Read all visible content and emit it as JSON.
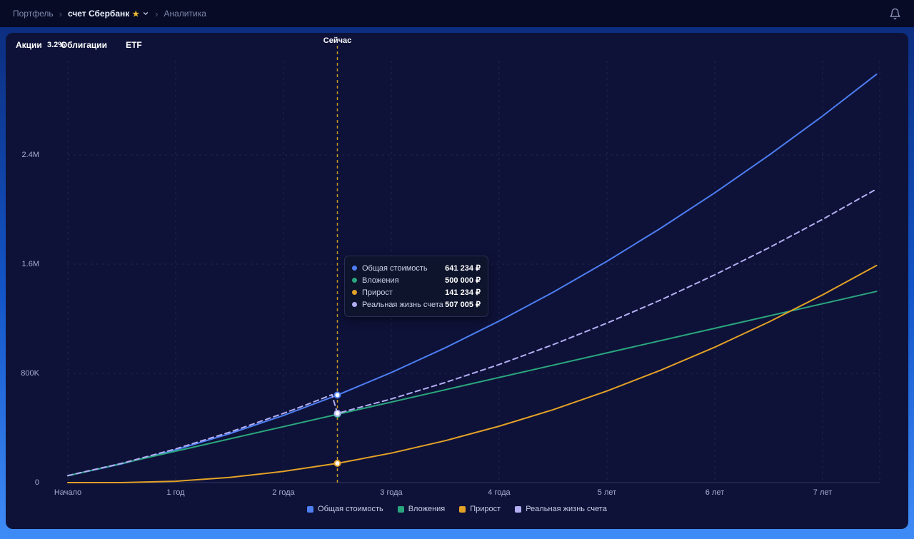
{
  "header": {
    "breadcrumb": {
      "portfolio": "Портфель",
      "account": "счет Сбербанк",
      "analytics": "Аналитика"
    }
  },
  "tabs": [
    {
      "key": "stocks",
      "label": "Акции"
    },
    {
      "key": "bonds",
      "label": "Облигации"
    },
    {
      "key": "etf",
      "label": "ETF"
    }
  ],
  "overlay_badge": "3.2%",
  "chart_data": {
    "type": "line",
    "title": "",
    "xlabel": "",
    "ylabel": "",
    "grid": true,
    "legend_position": "bottom",
    "now_label": "Сейчас",
    "now_x": 2.5,
    "xlim": [
      0,
      7.53
    ],
    "ylim": [
      0,
      3090000
    ],
    "xticks": [
      {
        "v": 0,
        "label": "Начало"
      },
      {
        "v": 1,
        "label": "1 год"
      },
      {
        "v": 2,
        "label": "2 года"
      },
      {
        "v": 3,
        "label": "3 года"
      },
      {
        "v": 4,
        "label": "4 года"
      },
      {
        "v": 5,
        "label": "5 лет"
      },
      {
        "v": 6,
        "label": "6 лет"
      },
      {
        "v": 7,
        "label": "7 лет"
      }
    ],
    "yticks": [
      {
        "v": 0,
        "label": "0"
      },
      {
        "v": 800000,
        "label": "800K"
      },
      {
        "v": 1600000,
        "label": "1.6M"
      },
      {
        "v": 2400000,
        "label": "2.4M"
      }
    ],
    "series": [
      {
        "key": "total",
        "name": "Общая стоимость",
        "color": "#4d7ef2",
        "dash": null,
        "x": [
          0,
          0.5,
          1,
          1.5,
          2,
          2.5,
          3,
          3.5,
          4,
          4.5,
          5,
          5.5,
          6,
          6.5,
          7,
          7.5
        ],
        "y": [
          50000,
          137000,
          240000,
          358000,
          492000,
          641234,
          806000,
          987000,
          1183000,
          1394000,
          1621000,
          1864000,
          2122000,
          2396000,
          2685000,
          2990000
        ]
      },
      {
        "key": "invested",
        "name": "Вложения",
        "color": "#2aa67e",
        "dash": null,
        "x": [
          0,
          2.5,
          7.5
        ],
        "y": [
          50000,
          500000,
          1400000
        ]
      },
      {
        "key": "growth",
        "name": "Прирост",
        "color": "#e3a127",
        "dash": null,
        "x": [
          0,
          0.5,
          1,
          1.5,
          2,
          2.5,
          3,
          3.5,
          4,
          4.5,
          5,
          5.5,
          6,
          6.5,
          7,
          7.5
        ],
        "y": [
          0,
          0,
          10000,
          38000,
          82000,
          141234,
          216000,
          307000,
          413000,
          534000,
          671000,
          824000,
          992000,
          1176000,
          1375000,
          1590000
        ]
      },
      {
        "key": "real",
        "name": "Реальная жизнь счета",
        "color": "#b3aef2",
        "dash": "7 5",
        "x": [
          0,
          0.5,
          1,
          1.5,
          2,
          2.2,
          2.35,
          2.45,
          2.5,
          3,
          3.5,
          4,
          4.5,
          5,
          5.5,
          6,
          6.5,
          7,
          7.5
        ],
        "y": [
          52000,
          141000,
          247000,
          369000,
          507000,
          566000,
          613000,
          644000,
          507005,
          613000,
          733000,
          865000,
          1010000,
          1168000,
          1338000,
          1522000,
          1719000,
          1928000,
          2150000
        ]
      }
    ],
    "markers": [
      {
        "key": "invested",
        "value": 500000,
        "color": "#2aa67e"
      },
      {
        "key": "total",
        "value": 641234,
        "color": "#4d7ef2"
      },
      {
        "key": "real",
        "value": 507005,
        "color": "#b3aef2"
      },
      {
        "key": "growth",
        "value": 141234,
        "color": "#e3a127"
      }
    ]
  },
  "tooltip": {
    "rows": [
      {
        "key": "total",
        "label": "Общая стоимость",
        "value": "641 234 ₽",
        "color": "#4d7ef2"
      },
      {
        "key": "invested",
        "label": "Вложения",
        "value": "500 000 ₽",
        "color": "#2aa67e"
      },
      {
        "key": "growth",
        "label": "Прирост",
        "value": "141 234 ₽",
        "color": "#e3a127"
      },
      {
        "key": "real",
        "label": "Реальная жизнь счета",
        "value": "507 005 ₽",
        "color": "#b3aef2"
      }
    ]
  }
}
